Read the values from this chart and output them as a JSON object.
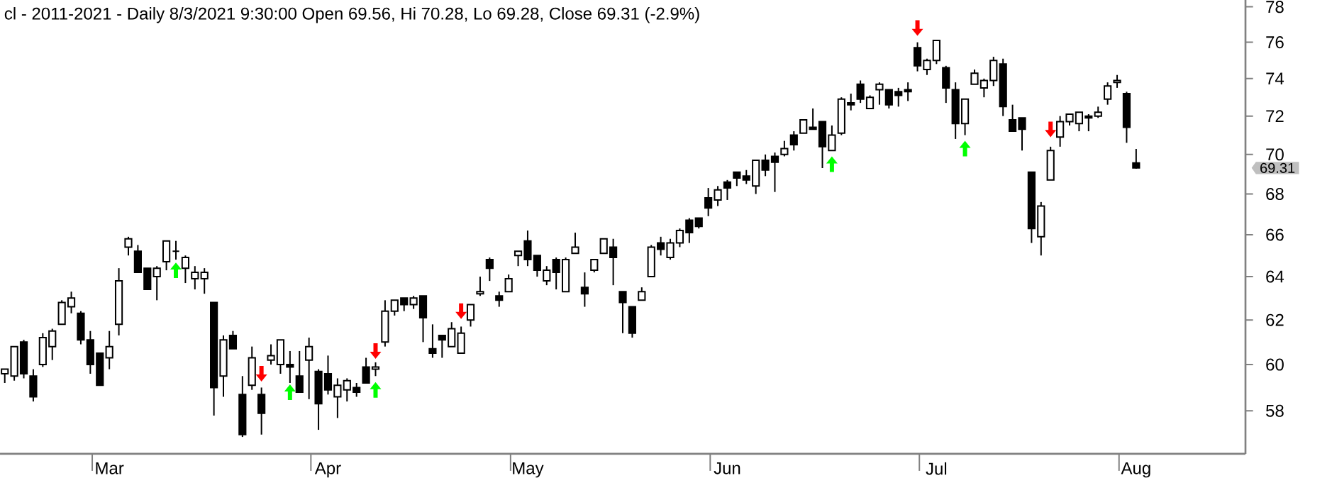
{
  "chart_data": {
    "type": "candlestick",
    "title": "cl - 2011-2021 - Daily 8/3/2021 9:30:00 Open 69.56, Hi 70.28, Lo 69.28, Close 69.31 (-2.9%)",
    "categories": [
      null,
      null,
      null,
      null,
      null,
      null,
      null,
      null,
      null,
      null,
      null,
      "Mar",
      null,
      null,
      null,
      null,
      null,
      null,
      null,
      null,
      null,
      null,
      null,
      null,
      null,
      null,
      null,
      null,
      null,
      null,
      null,
      null,
      null,
      null,
      "Apr",
      null,
      null,
      null,
      null,
      null,
      null,
      null,
      null,
      null,
      null,
      null,
      null,
      null,
      null,
      null,
      null,
      null,
      null,
      null,
      null,
      "May",
      null,
      null,
      null,
      null,
      null,
      null,
      null,
      null,
      null,
      null,
      null,
      null,
      null,
      null,
      null,
      null,
      null,
      null,
      null,
      null,
      "Jun",
      null,
      null,
      null,
      null,
      null,
      null,
      null,
      null,
      null,
      null,
      null,
      null,
      null,
      null,
      null,
      null,
      null,
      null,
      null,
      null,
      null,
      "Jul",
      null,
      null,
      null,
      null,
      null,
      null,
      null,
      null,
      null,
      null,
      null,
      null,
      null,
      null,
      null,
      null,
      null,
      null,
      null,
      null,
      "Aug",
      null,
      null,
      null,
      null,
      null,
      null,
      null,
      null,
      null,
      null,
      null
    ],
    "color": "#000000",
    "ohlc": [
      [
        59.6,
        59.8,
        59.2,
        59.8
      ],
      [
        59.5,
        60.8,
        59.3,
        60.8
      ],
      [
        61.0,
        61.1,
        59.4,
        59.6
      ],
      [
        59.5,
        59.8,
        58.4,
        58.6
      ],
      [
        60.0,
        61.4,
        59.9,
        61.2
      ],
      [
        60.8,
        61.6,
        60.2,
        61.5
      ],
      [
        61.8,
        62.9,
        61.8,
        62.8
      ],
      [
        62.6,
        63.3,
        62.3,
        63.0
      ],
      [
        62.3,
        62.4,
        60.9,
        61.1
      ],
      [
        61.1,
        61.5,
        59.6,
        60.0
      ],
      [
        60.5,
        60.5,
        59.1,
        59.1
      ],
      [
        60.3,
        61.5,
        59.8,
        60.8
      ],
      [
        61.8,
        64.4,
        61.3,
        63.8
      ],
      [
        65.4,
        65.9,
        65.0,
        65.8
      ],
      [
        65.2,
        65.5,
        64.2,
        64.2
      ],
      [
        64.4,
        64.4,
        63.4,
        63.4
      ],
      [
        64.0,
        64.5,
        62.9,
        64.4
      ],
      [
        64.7,
        65.7,
        64.3,
        65.7
      ],
      [
        65.2,
        65.7,
        64.8,
        65.2
      ],
      [
        64.4,
        65.0,
        63.7,
        64.9
      ],
      [
        63.9,
        64.5,
        63.4,
        64.2
      ],
      [
        63.9,
        64.4,
        63.2,
        64.2
      ],
      [
        62.8,
        62.8,
        57.8,
        59.0
      ],
      [
        59.5,
        61.3,
        58.6,
        61.1
      ],
      [
        61.3,
        61.5,
        60.7,
        60.7
      ],
      [
        58.7,
        59.5,
        56.9,
        57.0
      ],
      [
        59.1,
        60.8,
        58.9,
        60.3
      ],
      [
        58.7,
        59.0,
        57.0,
        57.9
      ],
      [
        60.2,
        60.9,
        60.0,
        60.4
      ],
      [
        60.0,
        61.1,
        59.6,
        61.1
      ],
      [
        60.0,
        60.6,
        59.2,
        59.9
      ],
      [
        59.5,
        60.6,
        58.8,
        58.8
      ],
      [
        60.2,
        61.2,
        58.5,
        60.8
      ],
      [
        59.7,
        59.8,
        57.2,
        58.3
      ],
      [
        59.6,
        60.4,
        58.7,
        58.9
      ],
      [
        58.6,
        59.4,
        57.7,
        59.1
      ],
      [
        58.9,
        59.4,
        58.4,
        59.3
      ],
      [
        59.0,
        59.2,
        58.6,
        58.8
      ],
      [
        59.9,
        60.3,
        59.2,
        59.2
      ],
      [
        59.8,
        60.1,
        59.5,
        59.9
      ],
      [
        61.0,
        62.9,
        60.8,
        62.4
      ],
      [
        62.4,
        62.9,
        62.2,
        62.9
      ],
      [
        63.0,
        63.0,
        62.4,
        62.7
      ],
      [
        62.7,
        63.1,
        62.5,
        63.0
      ],
      [
        63.1,
        63.1,
        61.0,
        62.1
      ],
      [
        60.7,
        61.8,
        60.3,
        60.5
      ],
      [
        61.3,
        61.3,
        60.3,
        61.1
      ],
      [
        60.8,
        61.9,
        60.8,
        61.6
      ],
      [
        60.5,
        61.7,
        60.5,
        61.4
      ],
      [
        62.0,
        62.7,
        61.7,
        62.7
      ],
      [
        63.2,
        64.0,
        63.1,
        63.3
      ],
      [
        64.8,
        64.9,
        63.8,
        64.4
      ],
      [
        63.1,
        63.3,
        62.6,
        62.9
      ],
      [
        63.3,
        64.1,
        63.3,
        63.9
      ],
      [
        65.0,
        65.2,
        64.5,
        65.2
      ],
      [
        65.7,
        66.2,
        64.5,
        64.8
      ],
      [
        65.0,
        65.0,
        64.0,
        64.3
      ],
      [
        63.8,
        64.5,
        63.6,
        64.3
      ],
      [
        64.8,
        64.9,
        63.4,
        64.2
      ],
      [
        63.3,
        64.9,
        63.3,
        64.8
      ],
      [
        65.1,
        66.1,
        65.1,
        65.4
      ],
      [
        63.5,
        64.2,
        62.6,
        63.2
      ],
      [
        64.3,
        64.8,
        64.2,
        64.8
      ],
      [
        65.1,
        65.8,
        65.1,
        65.8
      ],
      [
        65.4,
        65.8,
        63.6,
        64.9
      ],
      [
        63.3,
        63.3,
        61.4,
        62.8
      ],
      [
        62.6,
        62.6,
        61.2,
        61.4
      ],
      [
        62.9,
        63.5,
        62.9,
        63.3
      ],
      [
        64.0,
        65.5,
        64.0,
        65.4
      ],
      [
        65.6,
        65.9,
        65.0,
        65.3
      ],
      [
        64.9,
        65.8,
        64.8,
        65.6
      ],
      [
        65.6,
        66.3,
        65.4,
        66.2
      ],
      [
        66.7,
        66.8,
        65.6,
        66.1
      ],
      [
        66.8,
        66.8,
        66.3,
        66.4
      ],
      [
        67.8,
        68.3,
        66.9,
        67.3
      ],
      [
        67.7,
        68.4,
        67.4,
        68.2
      ],
      [
        68.6,
        68.7,
        67.7,
        68.3
      ],
      [
        69.1,
        69.1,
        68.4,
        68.8
      ],
      [
        68.9,
        69.2,
        68.5,
        68.7
      ],
      [
        68.4,
        69.7,
        68.0,
        69.7
      ],
      [
        69.7,
        70.0,
        68.9,
        69.2
      ],
      [
        69.9,
        70.1,
        68.1,
        69.6
      ],
      [
        70.0,
        70.7,
        69.9,
        70.3
      ],
      [
        71.0,
        71.2,
        70.2,
        70.5
      ],
      [
        71.1,
        71.8,
        71.1,
        71.8
      ],
      [
        71.4,
        72.4,
        71.3,
        71.3
      ],
      [
        71.7,
        71.7,
        69.3,
        70.4
      ],
      [
        70.2,
        71.5,
        70.2,
        71.0
      ],
      [
        71.1,
        73.0,
        71.0,
        72.9
      ],
      [
        72.7,
        73.2,
        72.3,
        72.6
      ],
      [
        73.7,
        73.9,
        72.7,
        72.9
      ],
      [
        72.4,
        73.1,
        72.4,
        73.0
      ],
      [
        73.4,
        73.8,
        72.6,
        73.7
      ],
      [
        73.4,
        73.4,
        72.4,
        72.6
      ],
      [
        73.3,
        73.5,
        72.5,
        73.1
      ],
      [
        73.4,
        73.8,
        72.8,
        73.3
      ],
      [
        75.7,
        76.0,
        74.4,
        74.7
      ],
      [
        74.5,
        75.1,
        74.2,
        75.0
      ],
      [
        75.0,
        76.1,
        74.8,
        76.1
      ],
      [
        74.6,
        74.7,
        72.7,
        73.5
      ],
      [
        73.4,
        73.8,
        70.8,
        71.6
      ],
      [
        71.6,
        72.9,
        71.0,
        72.9
      ],
      [
        73.7,
        74.5,
        73.7,
        74.3
      ],
      [
        73.5,
        74.0,
        73.0,
        73.9
      ],
      [
        73.9,
        75.2,
        73.6,
        75.0
      ],
      [
        74.8,
        75.1,
        72.0,
        72.5
      ],
      [
        71.8,
        72.6,
        71.2,
        71.2
      ],
      [
        71.9,
        71.9,
        70.2,
        71.3
      ],
      [
        69.1,
        69.1,
        65.6,
        66.3
      ],
      [
        65.9,
        67.6,
        65.0,
        67.4
      ],
      [
        68.7,
        70.4,
        68.7,
        70.2
      ],
      [
        70.9,
        72.0,
        70.4,
        71.7
      ],
      [
        71.7,
        72.1,
        71.5,
        72.1
      ],
      [
        71.6,
        72.2,
        71.2,
        72.2
      ],
      [
        72.0,
        72.1,
        71.2,
        71.9
      ],
      [
        72.0,
        72.5,
        71.9,
        72.2
      ],
      [
        72.9,
        73.8,
        72.6,
        73.6
      ],
      [
        73.8,
        74.2,
        73.5,
        73.9
      ],
      [
        73.2,
        73.3,
        70.6,
        71.4
      ],
      [
        69.56,
        70.28,
        69.28,
        69.31
      ],
      null,
      null,
      null,
      null,
      null,
      null,
      null,
      null,
      null,
      null,
      null
    ],
    "series": [
      {
        "type": "scatter",
        "color": "#ff0000",
        "values": [
          null,
          null,
          null,
          null,
          null,
          null,
          null,
          null,
          null,
          null,
          null,
          null,
          null,
          null,
          null,
          null,
          null,
          null,
          null,
          null,
          null,
          null,
          null,
          null,
          null,
          null,
          null,
          59.6,
          null,
          null,
          null,
          null,
          null,
          null,
          null,
          null,
          null,
          null,
          null,
          60.6,
          null,
          null,
          null,
          null,
          null,
          null,
          null,
          null,
          62.4,
          null,
          null,
          null,
          null,
          null,
          null,
          null,
          null,
          null,
          null,
          null,
          null,
          null,
          null,
          null,
          null,
          null,
          null,
          null,
          null,
          null,
          null,
          null,
          null,
          null,
          null,
          null,
          null,
          null,
          null,
          null,
          null,
          null,
          null,
          null,
          null,
          null,
          null,
          null,
          null,
          null,
          null,
          null,
          null,
          null,
          null,
          null,
          76.8,
          null,
          null,
          null,
          null,
          null,
          null,
          null,
          null,
          null,
          null,
          null,
          null,
          null,
          71.3,
          null,
          null,
          null,
          null,
          null,
          null,
          null,
          null,
          null,
          null,
          null,
          null,
          null,
          null,
          null,
          null,
          null,
          null,
          null,
          null
        ]
      },
      {
        "type": "scatter",
        "color": "#00ff00",
        "values": [
          null,
          null,
          null,
          null,
          null,
          null,
          null,
          null,
          null,
          null,
          null,
          null,
          null,
          null,
          null,
          null,
          null,
          null,
          64.3,
          null,
          null,
          null,
          null,
          null,
          null,
          null,
          null,
          null,
          null,
          null,
          58.8,
          null,
          null,
          null,
          null,
          null,
          null,
          null,
          null,
          58.9,
          null,
          null,
          null,
          null,
          null,
          null,
          null,
          null,
          null,
          null,
          null,
          null,
          null,
          null,
          null,
          null,
          null,
          null,
          null,
          null,
          null,
          null,
          null,
          null,
          null,
          null,
          null,
          null,
          null,
          null,
          null,
          null,
          null,
          null,
          null,
          null,
          null,
          null,
          null,
          null,
          null,
          null,
          null,
          null,
          null,
          null,
          null,
          69.5,
          null,
          null,
          null,
          null,
          null,
          null,
          null,
          null,
          null,
          null,
          null,
          null,
          null,
          70.3,
          null,
          null,
          null,
          null,
          null,
          null,
          null,
          null,
          null,
          null,
          null,
          null,
          null,
          null,
          null,
          null,
          null,
          null,
          null,
          null,
          null,
          null,
          null,
          null,
          null,
          null,
          null,
          null,
          null
        ]
      }
    ],
    "log": true,
    "ylim": [
      56.2,
      78.4
    ],
    "yticks": [
      58,
      60,
      62,
      64,
      66,
      68,
      70,
      72,
      74,
      76,
      78
    ],
    "annotations": [
      "69.31"
    ]
  }
}
